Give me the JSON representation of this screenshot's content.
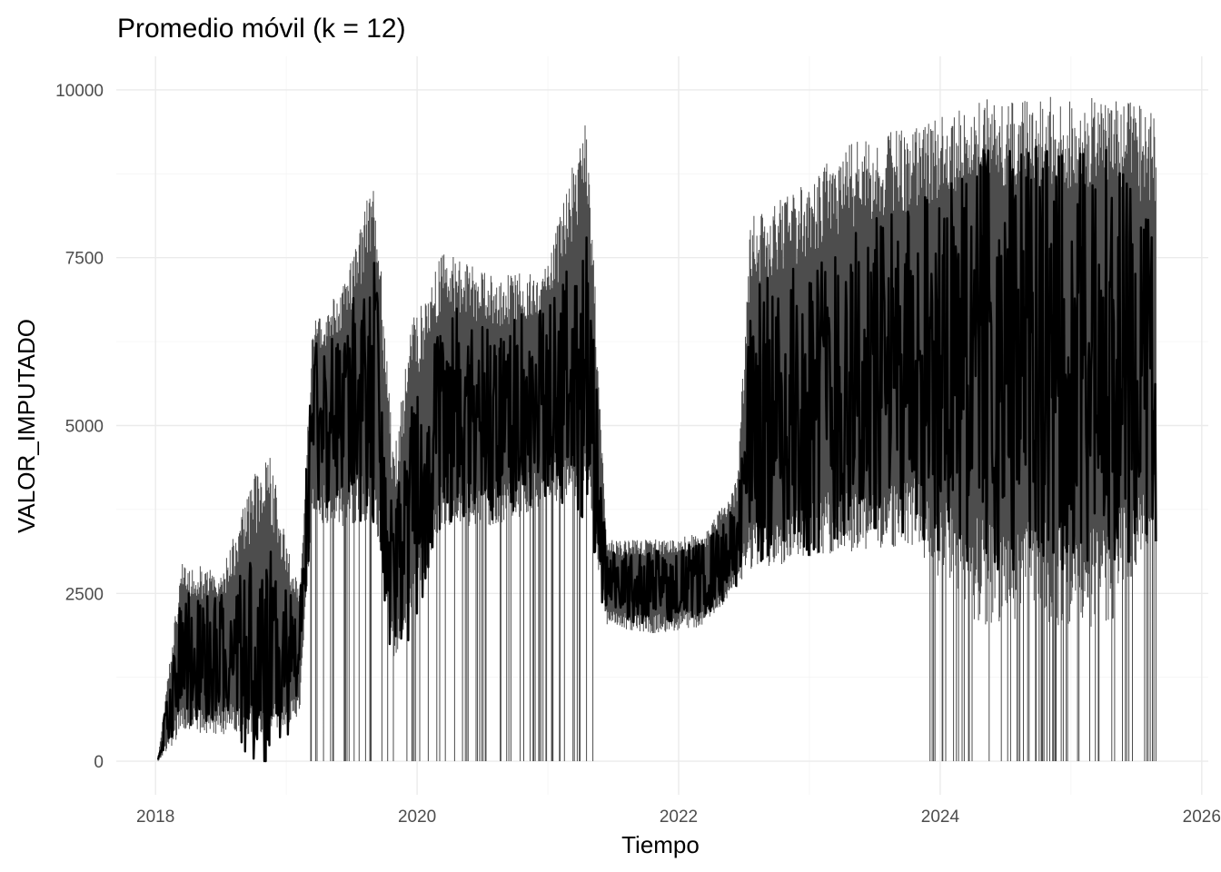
{
  "chart_data": {
    "type": "line",
    "title": "Promedio móvil (k = 12)",
    "xlabel": "Tiempo",
    "ylabel": "VALOR_IMPUTADO",
    "xlim": [
      2017.7,
      2026.05
    ],
    "ylim": [
      -500,
      10500
    ],
    "x_ticks": [
      2018,
      2020,
      2022,
      2024,
      2026
    ],
    "x_tick_labels": [
      "2018",
      "2020",
      "2022",
      "2024",
      "2026"
    ],
    "y_ticks": [
      0,
      2500,
      5000,
      7500,
      10000
    ],
    "y_tick_labels": [
      "0",
      "2500",
      "5000",
      "7500",
      "10000"
    ],
    "grid": true,
    "legend": "none",
    "series": [
      {
        "color": "#000000",
        "envelope_color": "#4d4d4d",
        "segments": [
          {
            "x": 2018.02,
            "low": 0,
            "high": 50,
            "base": 20
          },
          {
            "x": 2018.2,
            "low": 400,
            "high": 3000,
            "base": 1500
          },
          {
            "x": 2018.5,
            "low": 400,
            "high": 2800,
            "base": 1550
          },
          {
            "x": 2018.85,
            "low": 400,
            "high": 4800,
            "base": 1500
          },
          {
            "x": 2019.1,
            "low": 600,
            "high": 2500,
            "base": 1500
          },
          {
            "x": 2019.2,
            "low": 3500,
            "high": 6500,
            "base": 5000
          },
          {
            "x": 2019.45,
            "low": 3500,
            "high": 7200,
            "base": 5200
          },
          {
            "x": 2019.68,
            "low": 3600,
            "high": 8800,
            "base": 5400
          },
          {
            "x": 2019.82,
            "low": 1500,
            "high": 4500,
            "base": 2500
          },
          {
            "x": 2019.95,
            "low": 2200,
            "high": 6500,
            "base": 3500
          },
          {
            "x": 2020.2,
            "low": 3500,
            "high": 7600,
            "base": 5200
          },
          {
            "x": 2020.6,
            "low": 3500,
            "high": 7200,
            "base": 5000
          },
          {
            "x": 2021.0,
            "low": 3800,
            "high": 7400,
            "base": 5400
          },
          {
            "x": 2021.3,
            "low": 4000,
            "high": 9800,
            "base": 5600
          },
          {
            "x": 2021.45,
            "low": 2000,
            "high": 3300,
            "base": 2600
          },
          {
            "x": 2021.8,
            "low": 1900,
            "high": 3300,
            "base": 2600
          },
          {
            "x": 2022.2,
            "low": 2000,
            "high": 3400,
            "base": 2700
          },
          {
            "x": 2022.45,
            "low": 2600,
            "high": 4200,
            "base": 3200
          },
          {
            "x": 2022.55,
            "low": 2800,
            "high": 8200,
            "base": 5000
          },
          {
            "x": 2022.9,
            "low": 3000,
            "high": 8500,
            "base": 5200
          },
          {
            "x": 2023.3,
            "low": 3100,
            "high": 9200,
            "base": 5600
          },
          {
            "x": 2023.8,
            "low": 3200,
            "high": 9500,
            "base": 5800
          },
          {
            "x": 2024.3,
            "low": 2000,
            "high": 9900,
            "base": 6000
          },
          {
            "x": 2024.8,
            "low": 2000,
            "high": 9900,
            "base": 6000
          },
          {
            "x": 2025.3,
            "low": 2000,
            "high": 9900,
            "base": 6000
          },
          {
            "x": 2025.65,
            "low": 3500,
            "high": 9700,
            "base": 5500
          }
        ]
      }
    ]
  }
}
